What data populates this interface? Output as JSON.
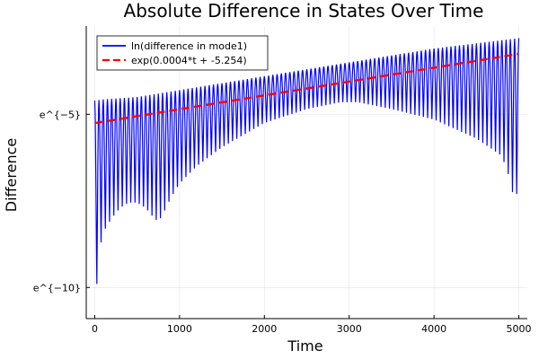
{
  "chart_data": {
    "type": "line",
    "title": "Absolute Difference in States Over Time",
    "xlabel": "Time",
    "ylabel": "Difference",
    "xlim": [
      -100,
      5100
    ],
    "ylim": [
      -10.9,
      -2.45
    ],
    "grid": true,
    "legend_position": "top-left",
    "x_ticks": [
      {
        "value": 0,
        "label": "0"
      },
      {
        "value": 1000,
        "label": "1000"
      },
      {
        "value": 2000,
        "label": "2000"
      },
      {
        "value": 3000,
        "label": "3000"
      },
      {
        "value": 4000,
        "label": "4000"
      },
      {
        "value": 5000,
        "label": "5000"
      }
    ],
    "y_ticks": [
      {
        "value": -5,
        "label": "e^{−5}"
      },
      {
        "value": -10,
        "label": "e^{−10}"
      }
    ],
    "series": [
      {
        "name": "ln(difference in mode1)",
        "color": "#0000ff",
        "style": "solid",
        "period": 50,
        "x_start": 0,
        "x_end": 5000,
        "upper_envelope": {
          "x": [
            0,
            100,
            500,
            1000,
            1500,
            2000,
            2500,
            3000,
            3500,
            4000,
            4500,
            5000
          ],
          "y": [
            -4.6,
            -4.57,
            -4.5,
            -4.3,
            -4.1,
            -3.9,
            -3.7,
            -3.5,
            -3.3,
            -3.1,
            -2.95,
            -2.8
          ]
        },
        "lower_envelope": {
          "x": [
            0,
            25,
            50,
            100,
            200,
            300,
            400,
            500,
            600,
            700,
            750,
            800,
            900,
            1000,
            1200,
            1500,
            2000,
            2500,
            2900,
            3100,
            3500,
            4000,
            4500,
            4800,
            4900,
            4950,
            5000
          ],
          "y": [
            -10.85,
            -9.9,
            -9.0,
            -8.4,
            -8.0,
            -7.7,
            -7.55,
            -7.55,
            -7.7,
            -8.0,
            -8.1,
            -7.9,
            -7.4,
            -7.0,
            -6.5,
            -5.95,
            -5.25,
            -4.85,
            -4.65,
            -4.65,
            -4.85,
            -5.15,
            -5.7,
            -6.2,
            -6.9,
            -7.6,
            -7.0
          ]
        }
      },
      {
        "name": "exp(0.0004*t + -5.254)",
        "color": "#ff0000",
        "style": "dashed",
        "slope": 0.0004,
        "intercept": -5.254
      }
    ]
  }
}
